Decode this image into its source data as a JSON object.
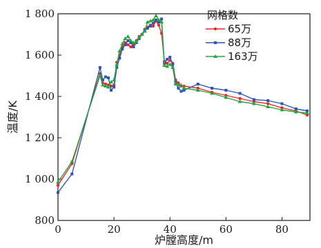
{
  "chart_data": {
    "type": "line",
    "xlabel": "炉膛高度/m",
    "ylabel": "温度/K",
    "xlim": [
      0,
      90
    ],
    "ylim": [
      800,
      1800
    ],
    "xticks": [
      "0",
      "20",
      "40",
      "60",
      "80"
    ],
    "yticks": [
      "800",
      "1 000",
      "1 200",
      "1 400",
      "1 600",
      "1 800"
    ],
    "grid": false,
    "legend": {
      "title": "网格数",
      "position": "top-right"
    },
    "series": [
      {
        "name": "65万",
        "color": "#e8262b",
        "marker": "circle",
        "x": [
          0,
          5,
          15,
          16,
          17,
          18,
          19,
          20,
          21,
          22,
          23,
          24,
          25,
          26,
          27,
          28,
          29,
          30,
          31,
          32,
          33,
          34,
          35,
          36,
          37,
          38,
          39,
          40,
          41,
          42,
          43,
          44,
          45,
          50,
          55,
          60,
          65,
          70,
          75,
          80,
          85,
          89
        ],
        "y": [
          970,
          1075,
          1510,
          1465,
          1460,
          1455,
          1450,
          1455,
          1565,
          1600,
          1640,
          1660,
          1650,
          1640,
          1650,
          1670,
          1690,
          1700,
          1725,
          1735,
          1745,
          1740,
          1765,
          1745,
          1705,
          1570,
          1560,
          1575,
          1560,
          1480,
          1465,
          1450,
          1450,
          1440,
          1420,
          1405,
          1390,
          1375,
          1365,
          1345,
          1330,
          1310
        ]
      },
      {
        "name": "88万",
        "color": "#2a57b5",
        "marker": "square",
        "x": [
          0,
          5,
          15,
          16,
          17,
          18,
          19,
          20,
          21,
          22,
          23,
          24,
          25,
          26,
          27,
          28,
          29,
          30,
          31,
          32,
          33,
          34,
          35,
          36,
          37,
          38,
          39,
          40,
          41,
          42,
          43,
          44,
          45,
          50,
          55,
          60,
          65,
          70,
          75,
          80,
          85,
          89
        ],
        "y": [
          935,
          1025,
          1540,
          1480,
          1495,
          1490,
          1430,
          1445,
          1540,
          1585,
          1630,
          1650,
          1670,
          1660,
          1640,
          1660,
          1680,
          1700,
          1720,
          1730,
          1740,
          1755,
          1770,
          1760,
          1775,
          1560,
          1580,
          1590,
          1555,
          1470,
          1440,
          1425,
          1430,
          1460,
          1440,
          1430,
          1415,
          1385,
          1380,
          1365,
          1340,
          1330
        ]
      },
      {
        "name": "163万",
        "color": "#27a53a",
        "marker": "triangle",
        "x": [
          0,
          5,
          15,
          16,
          17,
          18,
          19,
          20,
          21,
          22,
          23,
          24,
          25,
          26,
          27,
          28,
          29,
          30,
          31,
          32,
          33,
          34,
          35,
          36,
          37,
          38,
          39,
          40,
          41,
          42,
          43,
          44,
          45,
          50,
          55,
          60,
          65,
          70,
          75,
          80,
          85,
          89
        ],
        "y": [
          985,
          1085,
          1500,
          1455,
          1450,
          1445,
          1470,
          1480,
          1555,
          1620,
          1655,
          1680,
          1690,
          1670,
          1660,
          1665,
          1685,
          1700,
          1715,
          1760,
          1765,
          1770,
          1790,
          1770,
          1760,
          1550,
          1545,
          1555,
          1540,
          1460,
          1455,
          1455,
          1440,
          1430,
          1415,
          1395,
          1375,
          1365,
          1350,
          1335,
          1325,
          1320
        ]
      }
    ]
  }
}
